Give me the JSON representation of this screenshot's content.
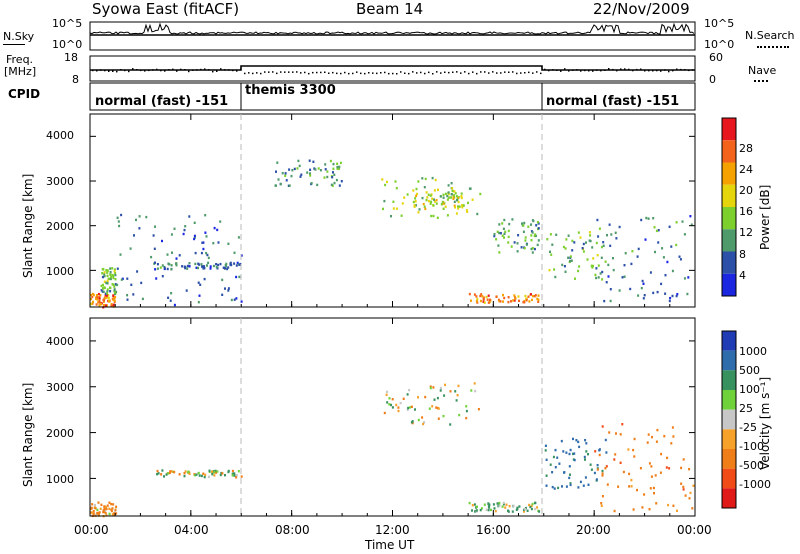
{
  "header": {
    "station": "Syowa East (fitACF)",
    "beam": "Beam 14",
    "date": "22/Nov/2009"
  },
  "top_panel": {
    "left_label": "N.Sky",
    "left_ticks": [
      "10^5",
      "10^0"
    ],
    "right_label": "N.Search",
    "right_ticks": [
      "10^5",
      "10^0"
    ]
  },
  "freq_panel": {
    "left_label_1": "Freq.",
    "left_label_2": "[MHz]",
    "left_ticks": [
      "18",
      "8"
    ],
    "right_label": "Nave",
    "right_ticks": [
      "60",
      "0"
    ]
  },
  "cpid_panel": {
    "label": "CPID",
    "segments": [
      "normal (fast) -151",
      "themis 3300",
      "normal (fast) -151"
    ]
  },
  "axes": {
    "ylabel": "Slant Range [km]",
    "xlabel": "Time UT",
    "yticks": [
      "4000",
      "3000",
      "2000",
      "1000"
    ],
    "xticks": [
      "00:00",
      "04:00",
      "08:00",
      "12:00",
      "16:00",
      "20:00",
      "00:00"
    ]
  },
  "power_colorbar": {
    "label": "Power [dB]",
    "ticks": [
      "28",
      "24",
      "20",
      "16",
      "12",
      "8",
      "4"
    ],
    "colors": [
      "#e8171f",
      "#f4631c",
      "#f5a200",
      "#e4d50c",
      "#7dcf2e",
      "#4e9a6a",
      "#2c50a7",
      "#1b26e0"
    ]
  },
  "velocity_colorbar": {
    "label": "Velocity [m s⁻¹]",
    "ticks": [
      "1000",
      "500",
      "100",
      "25",
      "-25",
      "-100",
      "-500",
      "-1000"
    ],
    "colors": [
      "#1f3cb5",
      "#2f6cac",
      "#38925f",
      "#6fd23b",
      "#c7c7c7",
      "#f5a12a",
      "#ef7e18",
      "#f14b18",
      "#e01919"
    ]
  },
  "chart_data": {
    "type": "heatmap",
    "x_range_hours": [
      0,
      24
    ],
    "y_range_km": [
      180,
      4500
    ],
    "grid": false,
    "cpid_switch_hours": [
      6,
      18
    ],
    "scatter_regions_power": [
      {
        "x": [
          0.0,
          1.0
        ],
        "y": [
          200,
          500
        ],
        "value_db": 22
      },
      {
        "x": [
          0.4,
          1.0
        ],
        "y": [
          500,
          1100
        ],
        "value_db": 10
      },
      {
        "x": [
          2.5,
          6.0
        ],
        "y": [
          1050,
          1200
        ],
        "value_db": 6
      },
      {
        "x": [
          1.0,
          6.0
        ],
        "y": [
          250,
          2300
        ],
        "value_db": 5
      },
      {
        "x": [
          7.3,
          10.0
        ],
        "y": [
          2900,
          3500
        ],
        "value_db": 8
      },
      {
        "x": [
          11.5,
          15.5
        ],
        "y": [
          2200,
          3100
        ],
        "value_db": 12
      },
      {
        "x": [
          12.8,
          14.8
        ],
        "y": [
          2400,
          2800
        ],
        "value_db": 14
      },
      {
        "x": [
          15.0,
          17.8
        ],
        "y": [
          300,
          500
        ],
        "value_db": 22
      },
      {
        "x": [
          16.0,
          17.8
        ],
        "y": [
          1400,
          2200
        ],
        "value_db": 8
      },
      {
        "x": [
          18.0,
          20.5
        ],
        "y": [
          800,
          1900
        ],
        "value_db": 10
      },
      {
        "x": [
          20.0,
          24.0
        ],
        "y": [
          300,
          2300
        ],
        "value_db": 6
      }
    ],
    "scatter_regions_velocity": [
      {
        "x": [
          0.0,
          1.0
        ],
        "y": [
          200,
          500
        ],
        "value_ms": -200
      },
      {
        "x": [
          2.5,
          6.0
        ],
        "y": [
          1050,
          1200
        ],
        "value_ms": 0
      },
      {
        "x": [
          11.5,
          15.5
        ],
        "y": [
          2200,
          3100
        ],
        "value_ms": 0
      },
      {
        "x": [
          15.0,
          17.8
        ],
        "y": [
          300,
          500
        ],
        "value_ms": 150
      },
      {
        "x": [
          18.0,
          20.5
        ],
        "y": [
          800,
          1900
        ],
        "value_ms": 600
      },
      {
        "x": [
          20.0,
          24.0
        ],
        "y": [
          300,
          2300
        ],
        "value_ms": -300
      }
    ]
  }
}
